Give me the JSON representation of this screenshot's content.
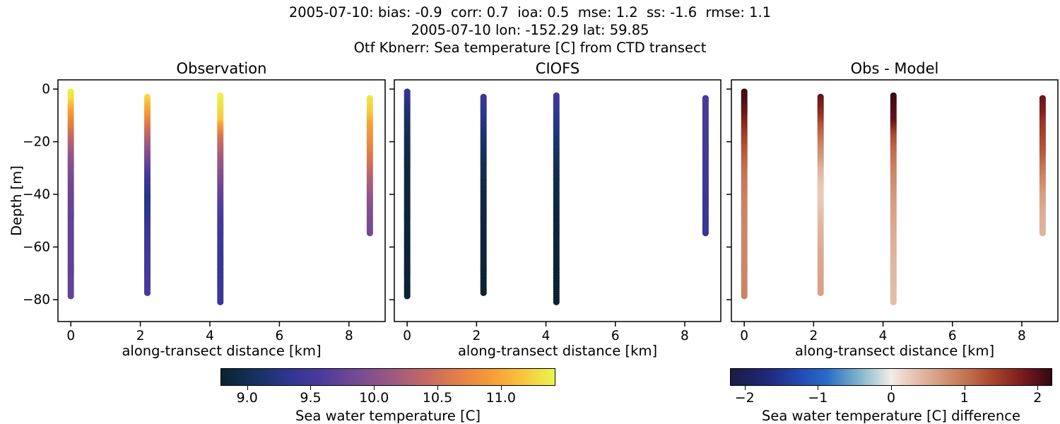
{
  "header": {
    "line1": "2005-07-10: bias: -0.9  corr: 0.7  ioa: 0.5  mse: 1.2  ss: -1.6  rmse: 1.1",
    "line2": "2005-07-10 lon: -152.29 lat: 59.85",
    "line3": "Otf Kbnerr: Sea temperature [C] from CTD transect"
  },
  "colors": {
    "background": "#ffffff",
    "axis": "#000000",
    "text": "#000000"
  },
  "colormaps": {
    "thermal": [
      [
        0,
        "#0a2230"
      ],
      [
        0.1,
        "#16315e"
      ],
      [
        0.2,
        "#2d3690"
      ],
      [
        0.3,
        "#4c3a9b"
      ],
      [
        0.42,
        "#7a4c92"
      ],
      [
        0.52,
        "#a05a80"
      ],
      [
        0.62,
        "#c66a62"
      ],
      [
        0.72,
        "#e68145"
      ],
      [
        0.82,
        "#f7a037"
      ],
      [
        0.9,
        "#f9c33c"
      ],
      [
        1,
        "#e9f64f"
      ]
    ],
    "balance": [
      [
        0,
        "#191c43"
      ],
      [
        0.12,
        "#20297b"
      ],
      [
        0.22,
        "#214cb4"
      ],
      [
        0.3,
        "#2a6cc5"
      ],
      [
        0.38,
        "#6da6c8"
      ],
      [
        0.45,
        "#b7d2d8"
      ],
      [
        0.5,
        "#f2edea"
      ],
      [
        0.56,
        "#e9c9b8"
      ],
      [
        0.65,
        "#d69c80"
      ],
      [
        0.74,
        "#c16f4e"
      ],
      [
        0.82,
        "#a8432c"
      ],
      [
        0.9,
        "#7e1f1e"
      ],
      [
        0.96,
        "#511019"
      ],
      [
        1,
        "#330710"
      ]
    ]
  },
  "chart_data": {
    "type": "scatter",
    "shared": {
      "xlabel": "along-transect distance [km]",
      "ylabel": "Depth [m]",
      "xlim": [
        -0.37,
        9.04
      ],
      "ylim": [
        -88.3,
        3.5
      ],
      "xticks": [
        0,
        2,
        4,
        6,
        8
      ],
      "xtick_labels": [
        "0",
        "2",
        "4",
        "6",
        "8"
      ],
      "yticks": [
        0,
        -20,
        -40,
        -60,
        -80
      ],
      "ytick_labels": [
        "0",
        "−20",
        "−40",
        "−60",
        "−80"
      ],
      "grid": false,
      "marker": "dot-column"
    },
    "subplots": [
      {
        "title": "Observation",
        "colormap": "thermal",
        "vmin": 8.79,
        "vmax": 11.43,
        "show_ylabel": true,
        "columns": [
          {
            "x": 0.0,
            "profile": [
              [
                -1,
                11.4
              ],
              [
                -4,
                11.32
              ],
              [
                -6,
                11.15
              ],
              [
                -9,
                10.95
              ],
              [
                -13,
                10.72
              ],
              [
                -17,
                10.5
              ],
              [
                -21,
                10.28
              ],
              [
                -26,
                10.08
              ],
              [
                -30,
                9.96
              ],
              [
                -36,
                9.84
              ],
              [
                -42,
                9.78
              ],
              [
                -50,
                9.74
              ],
              [
                -60,
                9.72
              ],
              [
                -79,
                9.74
              ]
            ]
          },
          {
            "x": 2.2,
            "profile": [
              [
                -3,
                11.3
              ],
              [
                -6,
                11.1
              ],
              [
                -10,
                10.88
              ],
              [
                -14,
                10.6
              ],
              [
                -18,
                10.35
              ],
              [
                -22,
                10.1
              ],
              [
                -26,
                9.9
              ],
              [
                -31,
                9.62
              ],
              [
                -36,
                9.4
              ],
              [
                -41,
                9.27
              ],
              [
                -46,
                9.3
              ],
              [
                -52,
                9.4
              ],
              [
                -60,
                9.48
              ],
              [
                -70,
                9.54
              ],
              [
                -78,
                9.56
              ]
            ]
          },
          {
            "x": 4.3,
            "profile": [
              [
                -2.5,
                11.42
              ],
              [
                -12,
                11.2
              ],
              [
                -14,
                10.95
              ],
              [
                -18,
                10.58
              ],
              [
                -23,
                10.32
              ],
              [
                -28,
                10.1
              ],
              [
                -34,
                9.92
              ],
              [
                -41,
                9.72
              ],
              [
                -48,
                9.56
              ],
              [
                -56,
                9.46
              ],
              [
                -65,
                9.4
              ],
              [
                -75,
                9.42
              ],
              [
                -81.5,
                9.45
              ]
            ]
          },
          {
            "x": 8.6,
            "profile": [
              [
                -3.5,
                11.35
              ],
              [
                -9,
                11.22
              ],
              [
                -13,
                11.0
              ],
              [
                -18,
                10.85
              ],
              [
                -24,
                10.68
              ],
              [
                -29,
                10.5
              ],
              [
                -34,
                10.3
              ],
              [
                -40,
                10.1
              ],
              [
                -46,
                9.96
              ],
              [
                -55,
                9.86
              ]
            ]
          }
        ]
      },
      {
        "title": "CIOFS",
        "colormap": "thermal",
        "vmin": 8.79,
        "vmax": 11.43,
        "show_ylabel": false,
        "columns": [
          {
            "x": 0.0,
            "profile": [
              [
                -1,
                9.4
              ],
              [
                -5,
                9.25
              ],
              [
                -12,
                9.05
              ],
              [
                -20,
                8.95
              ],
              [
                -30,
                8.88
              ],
              [
                -45,
                8.83
              ],
              [
                -79,
                8.8
              ]
            ]
          },
          {
            "x": 2.2,
            "profile": [
              [
                -3,
                9.45
              ],
              [
                -10,
                9.3
              ],
              [
                -18,
                9.14
              ],
              [
                -28,
                9.0
              ],
              [
                -40,
                8.9
              ],
              [
                -55,
                8.85
              ],
              [
                -78,
                8.8
              ]
            ]
          },
          {
            "x": 4.3,
            "profile": [
              [
                -2.5,
                9.5
              ],
              [
                -12,
                9.3
              ],
              [
                -22,
                9.1
              ],
              [
                -35,
                8.95
              ],
              [
                -50,
                8.85
              ],
              [
                -81.5,
                8.79
              ]
            ]
          },
          {
            "x": 8.6,
            "profile": [
              [
                -3.5,
                9.56
              ],
              [
                -20,
                9.51
              ],
              [
                -35,
                9.46
              ],
              [
                -55,
                9.41
              ]
            ]
          }
        ]
      },
      {
        "title": "Obs - Model",
        "colormap": "balance",
        "vmin": -2.2,
        "vmax": 2.2,
        "show_ylabel": false,
        "columns": [
          {
            "x": 0.0,
            "profile": [
              [
                -1,
                2.12
              ],
              [
                -5,
                2.05
              ],
              [
                -10,
                1.85
              ],
              [
                -15,
                1.6
              ],
              [
                -20,
                1.38
              ],
              [
                -26,
                1.18
              ],
              [
                -30,
                1.06
              ],
              [
                -36,
                0.96
              ],
              [
                -42,
                0.9
              ],
              [
                -50,
                0.86
              ],
              [
                -60,
                0.84
              ],
              [
                -79,
                0.86
              ]
            ]
          },
          {
            "x": 2.2,
            "profile": [
              [
                -3,
                1.92
              ],
              [
                -10,
                1.6
              ],
              [
                -14,
                1.28
              ],
              [
                -18,
                1.06
              ],
              [
                -22,
                0.86
              ],
              [
                -26,
                0.7
              ],
              [
                -31,
                0.46
              ],
              [
                -36,
                0.3
              ],
              [
                -41,
                0.26
              ],
              [
                -46,
                0.32
              ],
              [
                -52,
                0.42
              ],
              [
                -60,
                0.52
              ],
              [
                -70,
                0.58
              ],
              [
                -78,
                0.62
              ]
            ]
          },
          {
            "x": 4.3,
            "profile": [
              [
                -2.5,
                2.15
              ],
              [
                -12,
                1.95
              ],
              [
                -15,
                1.65
              ],
              [
                -18,
                1.35
              ],
              [
                -23,
                1.12
              ],
              [
                -28,
                0.95
              ],
              [
                -34,
                0.82
              ],
              [
                -41,
                0.7
              ],
              [
                -48,
                0.6
              ],
              [
                -56,
                0.52
              ],
              [
                -65,
                0.45
              ],
              [
                -75,
                0.4
              ],
              [
                -81.5,
                0.38
              ]
            ]
          },
          {
            "x": 8.6,
            "profile": [
              [
                -3.5,
                1.88
              ],
              [
                -9,
                1.74
              ],
              [
                -13,
                1.54
              ],
              [
                -18,
                1.4
              ],
              [
                -24,
                1.24
              ],
              [
                -29,
                1.04
              ],
              [
                -34,
                0.86
              ],
              [
                -40,
                0.66
              ],
              [
                -46,
                0.54
              ],
              [
                -55,
                0.45
              ]
            ]
          }
        ]
      }
    ]
  },
  "colorbars": [
    {
      "label": "Sea water temperature [C]",
      "colormap": "thermal",
      "vmin": 8.79,
      "vmax": 11.43,
      "ticks": [
        9.0,
        9.5,
        10.0,
        10.5,
        11.0
      ],
      "tick_labels": [
        "9.0",
        "9.5",
        "10.0",
        "10.5",
        "11.0"
      ]
    },
    {
      "label": "Sea water temperature [C] difference",
      "colormap": "balance",
      "vmin": -2.2,
      "vmax": 2.2,
      "ticks": [
        -2,
        -1,
        0,
        1,
        2
      ],
      "tick_labels": [
        "−2",
        "−1",
        "0",
        "1",
        "2"
      ]
    }
  ]
}
